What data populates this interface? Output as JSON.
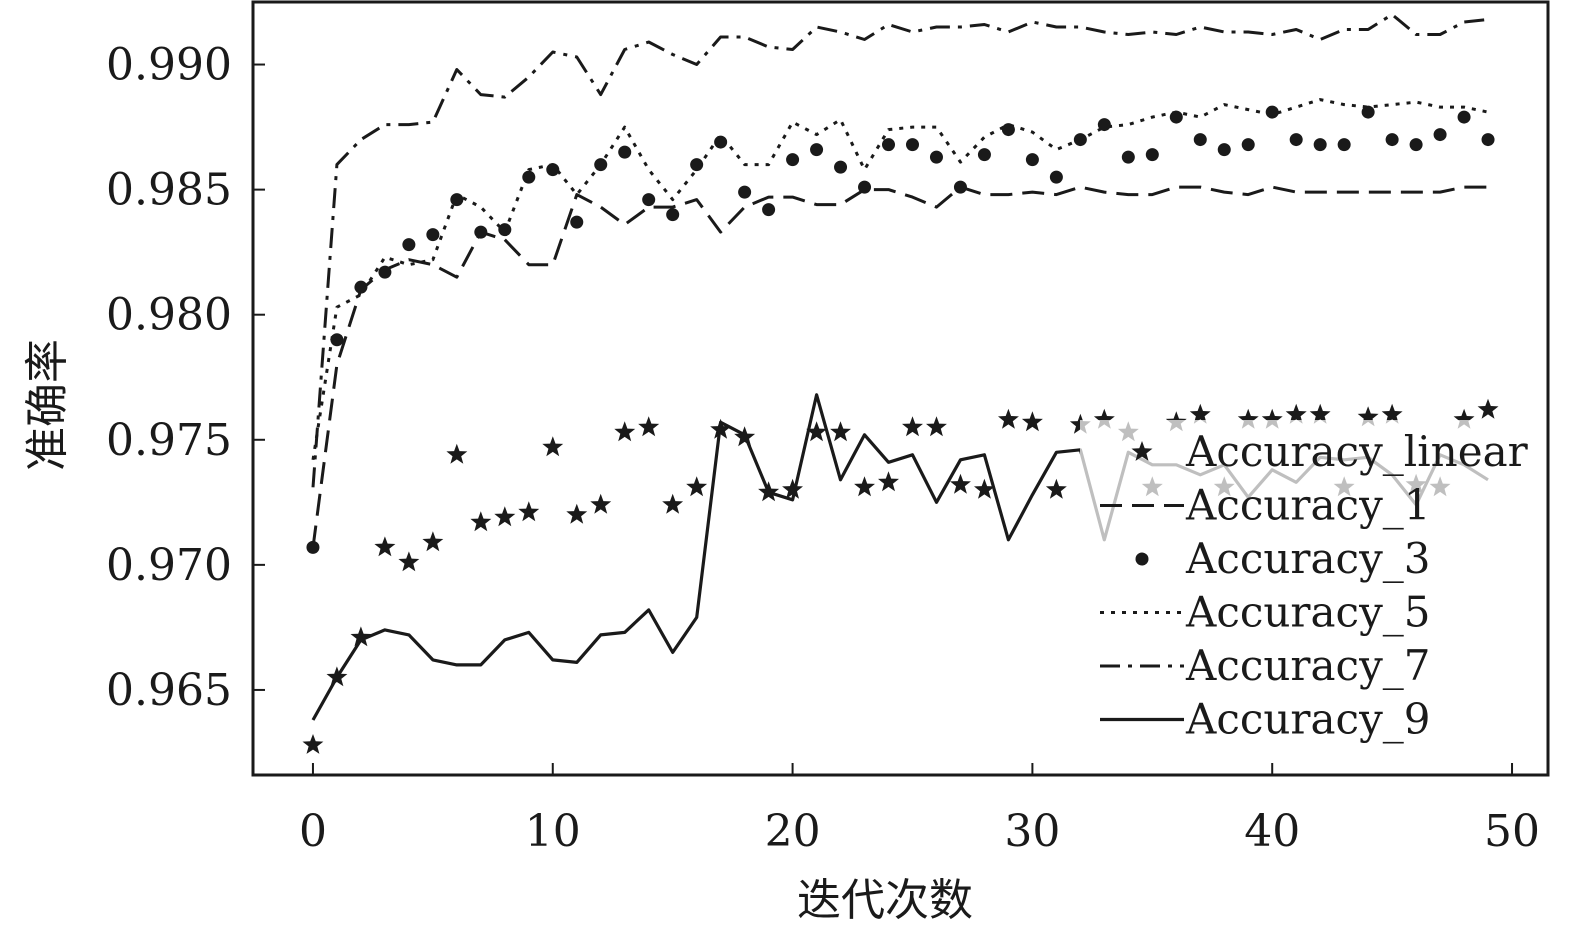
{
  "chart_data": {
    "type": "line",
    "title": "",
    "xlabel": "迭代次数",
    "ylabel": "准确率",
    "xlim": [
      -2.5,
      51.5
    ],
    "ylim": [
      0.9616,
      0.9925
    ],
    "xticks": [
      0,
      10,
      20,
      30,
      40,
      50
    ],
    "yticks": [
      0.965,
      0.97,
      0.975,
      0.98,
      0.985,
      0.99
    ],
    "xtick_labels": [
      "0",
      "10",
      "20",
      "30",
      "40",
      "50"
    ],
    "ytick_labels": [
      "0.965",
      "0.970",
      "0.975",
      "0.980",
      "0.985",
      "0.990"
    ],
    "grid": false,
    "legend_position": "lower-right",
    "series": [
      {
        "name": "Accuracy_linear",
        "style": "star-markers",
        "color": "#1a1a1a",
        "values": [
          0.9628,
          0.9655,
          0.9671,
          0.9707,
          0.9701,
          0.9709,
          0.9744,
          0.9717,
          0.9719,
          0.9721,
          0.9747,
          0.972,
          0.9724,
          0.9753,
          0.9755,
          0.9724,
          0.9731,
          0.9754,
          0.9751,
          0.9729,
          0.973,
          0.9753,
          0.9753,
          0.9731,
          0.9733,
          0.9755,
          0.9755,
          0.9732,
          0.973,
          0.9758,
          0.9757,
          0.973,
          0.9756,
          0.9758,
          0.9753,
          0.9731,
          0.9757,
          0.976,
          0.9731,
          0.9758,
          0.9758,
          0.976,
          0.976,
          0.9731,
          0.9759,
          0.976,
          0.9732,
          0.9731,
          0.9758,
          0.9762
        ]
      },
      {
        "name": "Accuracy_1",
        "style": "dashed",
        "color": "#1a1a1a",
        "values": [
          0.9707,
          0.978,
          0.981,
          0.9818,
          0.9822,
          0.982,
          0.9815,
          0.9833,
          0.983,
          0.982,
          0.982,
          0.9848,
          0.9843,
          0.9836,
          0.9843,
          0.9843,
          0.9846,
          0.9833,
          0.9843,
          0.9847,
          0.9847,
          0.9844,
          0.9844,
          0.985,
          0.985,
          0.9847,
          0.9843,
          0.9851,
          0.9848,
          0.9848,
          0.9849,
          0.9848,
          0.9851,
          0.9849,
          0.9848,
          0.9848,
          0.9851,
          0.9851,
          0.9849,
          0.9848,
          0.9851,
          0.9849,
          0.9849,
          0.9849,
          0.9849,
          0.9849,
          0.9849,
          0.9849,
          0.9851,
          0.9851
        ]
      },
      {
        "name": "Accuracy_3",
        "style": "dot-markers",
        "color": "#1a1a1a",
        "values": [
          0.9707,
          0.979,
          0.9811,
          0.9817,
          0.9828,
          0.9832,
          0.9846,
          0.9833,
          0.9834,
          0.9855,
          0.9858,
          0.9837,
          0.986,
          0.9865,
          0.9846,
          0.984,
          0.986,
          0.9869,
          0.9849,
          0.9842,
          0.9862,
          0.9866,
          0.9859,
          0.9851,
          0.9868,
          0.9868,
          0.9863,
          0.9851,
          0.9864,
          0.9874,
          0.9862,
          0.9855,
          0.987,
          0.9876,
          0.9863,
          0.9864,
          0.9879,
          0.987,
          0.9866,
          0.9868,
          0.9881,
          0.987,
          0.9868,
          0.9868,
          0.9881,
          0.987,
          0.9868,
          0.9872,
          0.9879,
          0.987
        ]
      },
      {
        "name": "Accuracy_5",
        "style": "dotted",
        "color": "#1a1a1a",
        "values": [
          0.9742,
          0.9803,
          0.9808,
          0.9823,
          0.982,
          0.9822,
          0.9848,
          0.9843,
          0.9833,
          0.9858,
          0.986,
          0.9848,
          0.986,
          0.9875,
          0.9858,
          0.9846,
          0.9858,
          0.9872,
          0.986,
          0.986,
          0.9877,
          0.9872,
          0.9878,
          0.9858,
          0.9874,
          0.9875,
          0.9875,
          0.9861,
          0.9871,
          0.9876,
          0.9873,
          0.9866,
          0.987,
          0.9875,
          0.9876,
          0.9879,
          0.9881,
          0.9879,
          0.9884,
          0.9882,
          0.988,
          0.9883,
          0.9886,
          0.9884,
          0.9883,
          0.9884,
          0.9885,
          0.9883,
          0.9883,
          0.9881
        ]
      },
      {
        "name": "Accuracy_7",
        "style": "dash-dot",
        "color": "#1a1a1a",
        "values": [
          0.9731,
          0.986,
          0.987,
          0.9876,
          0.9876,
          0.9877,
          0.9898,
          0.9888,
          0.9887,
          0.9895,
          0.9905,
          0.9903,
          0.9888,
          0.9906,
          0.9909,
          0.9904,
          0.99,
          0.9911,
          0.9911,
          0.9907,
          0.9906,
          0.9915,
          0.9913,
          0.991,
          0.9916,
          0.9913,
          0.9915,
          0.9915,
          0.9916,
          0.9913,
          0.9917,
          0.9915,
          0.9915,
          0.9913,
          0.9912,
          0.9913,
          0.9912,
          0.9915,
          0.9913,
          0.9913,
          0.9912,
          0.9914,
          0.991,
          0.9914,
          0.9914,
          0.992,
          0.9912,
          0.9912,
          0.9917,
          0.9918
        ]
      },
      {
        "name": "Accuracy_9",
        "style": "solid",
        "color": "#1a1a1a",
        "values": [
          0.9638,
          0.9655,
          0.967,
          0.9674,
          0.9672,
          0.9662,
          0.966,
          0.966,
          0.967,
          0.9673,
          0.9662,
          0.9661,
          0.9672,
          0.9673,
          0.9682,
          0.9665,
          0.9679,
          0.9757,
          0.9752,
          0.9729,
          0.9726,
          0.9768,
          0.9734,
          0.9752,
          0.9741,
          0.9744,
          0.9725,
          0.9742,
          0.9744,
          0.971,
          0.9728,
          0.9745,
          0.9746,
          0.971,
          0.9745,
          0.974,
          0.974,
          0.9736,
          0.974,
          0.9727,
          0.9738,
          0.9733,
          0.9743,
          0.9742,
          0.9743,
          0.9736,
          0.9724,
          0.9744,
          0.974,
          0.9734
        ]
      }
    ]
  }
}
